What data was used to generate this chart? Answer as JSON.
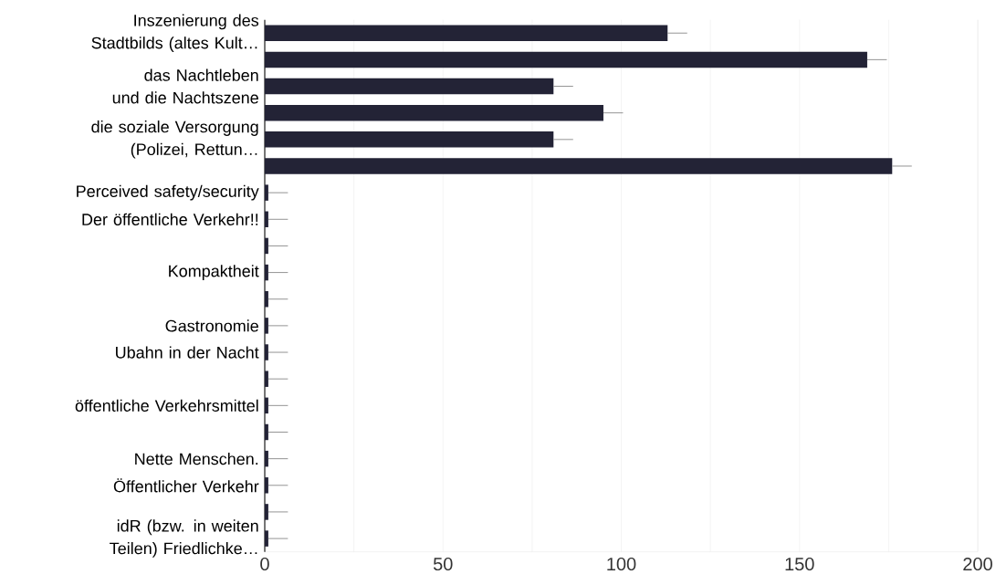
{
  "chart_data": {
    "type": "bar",
    "orientation": "horizontal",
    "color": "#232336",
    "categories": [
      "Inszenierung des Stadtbilds (altes Kult…",
      null,
      "das Nachtleben und die Nachtszene",
      null,
      "die soziale Versorgung (Polizei, Rettun…",
      null,
      "Perceived safety/security",
      "Der öffentliche Verkehr!!",
      null,
      "Kompaktheit",
      null,
      "Gastronomie",
      "Ubahn in der Nacht",
      null,
      "öffentliche Verkehrsmittel",
      null,
      "Nette Menschen.",
      "Öffentlicher Verkehr",
      null,
      "idR (bzw. in weiten Teilen) Friedlichke…"
    ],
    "values": [
      113,
      169,
      81,
      95,
      81,
      176,
      1,
      1,
      1,
      1,
      1,
      1,
      1,
      1,
      1,
      1,
      1,
      1,
      1,
      1
    ],
    "errors": [
      [
        113,
        118.5
      ],
      [
        169,
        174.5
      ],
      [
        81,
        86.5
      ],
      [
        95,
        100.5
      ],
      [
        81,
        86.5
      ],
      [
        176,
        181.5
      ],
      [
        1,
        6.5
      ],
      [
        1,
        6.5
      ],
      [
        1,
        6.5
      ],
      [
        1,
        6.5
      ],
      [
        1,
        6.5
      ],
      [
        1,
        6.5
      ],
      [
        1,
        6.5
      ],
      [
        1,
        6.5
      ],
      [
        1,
        6.5
      ],
      [
        1,
        6.5
      ],
      [
        1,
        6.5
      ],
      [
        1,
        6.5
      ],
      [
        1,
        6.5
      ],
      [
        1,
        6.5
      ]
    ],
    "xlim": [
      0,
      200
    ],
    "xticks": [
      0,
      {
        "value": 25,
        "label": null
      },
      50,
      {
        "value": 75,
        "label": null
      },
      100,
      {
        "value": 125,
        "label": null
      },
      150,
      {
        "value": 175,
        "label": null
      },
      200
    ],
    "grid": "x"
  }
}
